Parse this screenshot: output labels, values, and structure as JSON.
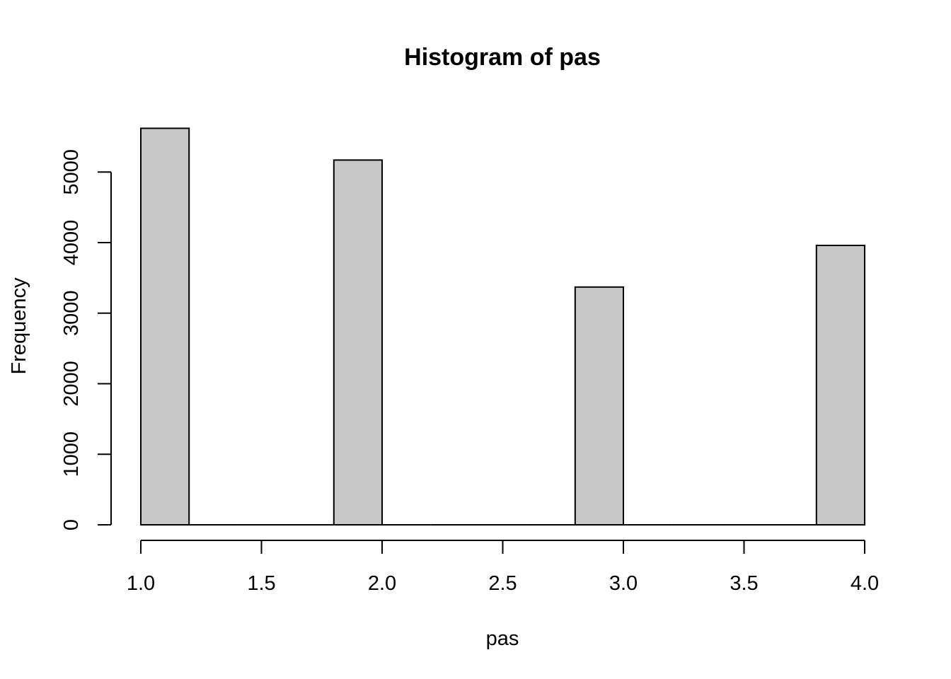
{
  "chart_data": {
    "type": "bar",
    "title": "Histogram of pas",
    "xlabel": "pas",
    "ylabel": "Frequency",
    "xlim": [
      1.0,
      4.0
    ],
    "ylim": [
      0,
      5620
    ],
    "xticks": [
      "1.0",
      "1.5",
      "2.0",
      "2.5",
      "3.0",
      "3.5",
      "4.0"
    ],
    "xtick_values": [
      1.0,
      1.5,
      2.0,
      2.5,
      3.0,
      3.5,
      4.0
    ],
    "yticks": [
      "0",
      "1000",
      "2000",
      "3000",
      "4000",
      "5000"
    ],
    "ytick_values": [
      0,
      1000,
      2000,
      3000,
      4000,
      5000
    ],
    "bin_edges": [
      1.0,
      1.2,
      1.4,
      1.6,
      1.8,
      2.0,
      2.2,
      2.4,
      2.6,
      2.8,
      3.0,
      3.2,
      3.4,
      3.6,
      3.8,
      4.0
    ],
    "values": [
      5620,
      0,
      0,
      0,
      5170,
      0,
      0,
      0,
      0,
      3370,
      0,
      0,
      0,
      0,
      3960
    ],
    "bar_fill": "#c8c8c8",
    "grid": false,
    "legend": "none"
  }
}
